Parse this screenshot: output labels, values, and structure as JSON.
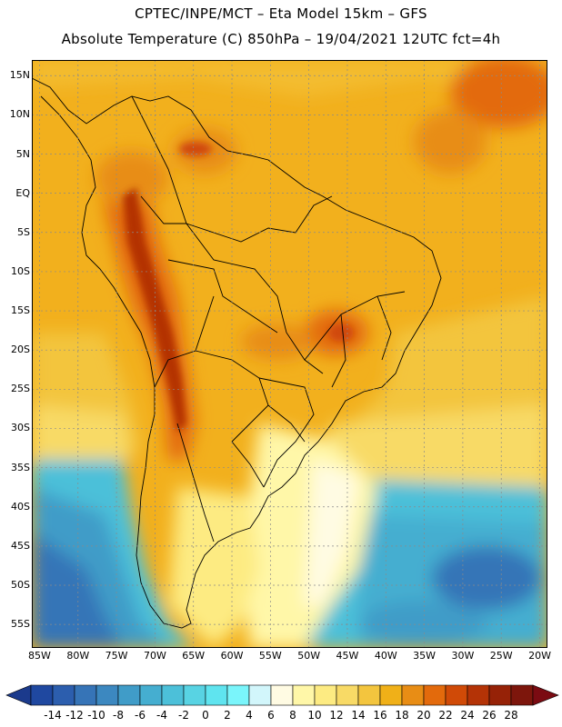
{
  "header": {
    "line1": "CPTEC/INPE/MCT –  Eta Model 15km – GFS",
    "line2": "Absolute Temperature (C) 850hPa – 19/04/2021 12UTC fct=4h"
  },
  "map": {
    "extent": {
      "lon_min": -86,
      "lon_max": -19,
      "lat_min": -58,
      "lat_max": 17
    },
    "lat_labels": [
      {
        "lat": 15,
        "text": "15N"
      },
      {
        "lat": 10,
        "text": "10N"
      },
      {
        "lat": 5,
        "text": "5N"
      },
      {
        "lat": 0,
        "text": "EQ"
      },
      {
        "lat": -5,
        "text": "5S"
      },
      {
        "lat": -10,
        "text": "10S"
      },
      {
        "lat": -15,
        "text": "15S"
      },
      {
        "lat": -20,
        "text": "20S"
      },
      {
        "lat": -25,
        "text": "25S"
      },
      {
        "lat": -30,
        "text": "30S"
      },
      {
        "lat": -35,
        "text": "35S"
      },
      {
        "lat": -40,
        "text": "40S"
      },
      {
        "lat": -45,
        "text": "45S"
      },
      {
        "lat": -50,
        "text": "50S"
      },
      {
        "lat": -55,
        "text": "55S"
      }
    ],
    "lon_labels": [
      {
        "lon": -85,
        "text": "85W"
      },
      {
        "lon": -80,
        "text": "80W"
      },
      {
        "lon": -75,
        "text": "75W"
      },
      {
        "lon": -70,
        "text": "70W"
      },
      {
        "lon": -65,
        "text": "65W"
      },
      {
        "lon": -60,
        "text": "60W"
      },
      {
        "lon": -55,
        "text": "55W"
      },
      {
        "lon": -50,
        "text": "50W"
      },
      {
        "lon": -45,
        "text": "45W"
      },
      {
        "lon": -40,
        "text": "40W"
      },
      {
        "lon": -35,
        "text": "35W"
      },
      {
        "lon": -30,
        "text": "30W"
      },
      {
        "lon": -25,
        "text": "25W"
      },
      {
        "lon": -20,
        "text": "20W"
      }
    ],
    "background_color": "#f2b01d",
    "ocean_outline_color": "#000000"
  },
  "colorbar": {
    "labels": [
      "-14",
      "-12",
      "-10",
      "-8",
      "-6",
      "-4",
      "-2",
      "0",
      "2",
      "4",
      "6",
      "8",
      "10",
      "12",
      "14",
      "16",
      "18",
      "20",
      "22",
      "24",
      "26",
      "28"
    ],
    "underflow_color": "#1b3a8c",
    "overflow_color": "#7b0b12",
    "colors": [
      "#1f48a0",
      "#2c5eae",
      "#3674b7",
      "#3c88c0",
      "#409cc8",
      "#45aed0",
      "#4cc0d9",
      "#58d3e3",
      "#5fe4ef",
      "#7af5fb",
      "#d2f6fb",
      "#fffbe3",
      "#fff7a8",
      "#fdeb82",
      "#f8da66",
      "#f3c53e",
      "#f0b018",
      "#e88d15",
      "#e36a0c",
      "#d04a07",
      "#b43306",
      "#962207",
      "#7d160c"
    ]
  }
}
